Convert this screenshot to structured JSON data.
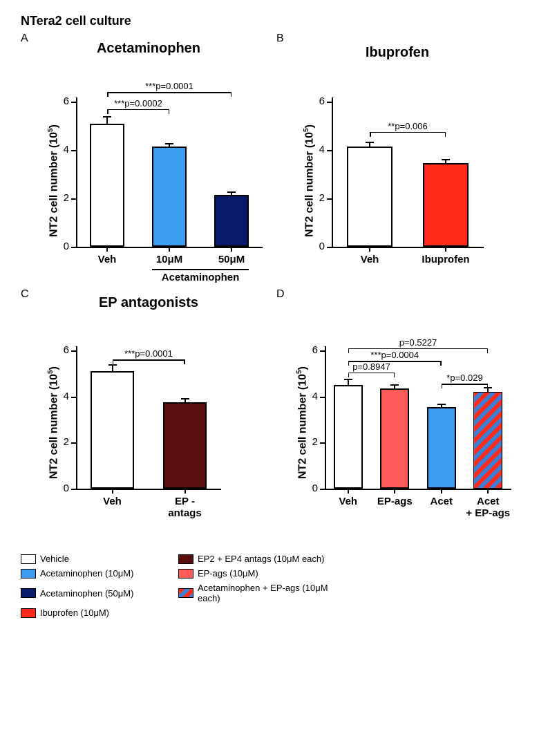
{
  "figure_title": "NTera2 cell culture",
  "ylabel_html": "NT2 cell number (10<sup>5</sup>)",
  "colors": {
    "vehicle": "#ffffff",
    "acet10": "#3b9cf0",
    "acet50": "#0a1a6a",
    "ibuprofen": "#ff2a1a",
    "ep_antags": "#5a0f0f",
    "ep_ags": "#ff5a5a",
    "acet_epags_base": "#3b7fd6",
    "acet_epags_stripe": "#ff2a1a",
    "axis": "#000000",
    "background": "#ffffff"
  },
  "typography": {
    "axis_fontsize": 15,
    "title_fontsize": 20,
    "label_fontsize": 16,
    "annot_fontsize": 13
  },
  "panels": {
    "A": {
      "letter": "A",
      "title": "Acetaminophen",
      "type": "bar",
      "ylim": [
        0,
        6
      ],
      "ytick_step": 2,
      "bar_width": 0.55,
      "bars": [
        {
          "label": "Veh",
          "value": 5.1,
          "err": 0.3,
          "fill": "vehicle"
        },
        {
          "label_html": "10<span class='mu'>μ</span>M",
          "value": 4.15,
          "err": 0.15,
          "fill": "acet10"
        },
        {
          "label_html": "50<span class='mu'>μ</span>M",
          "value": 2.15,
          "err": 0.15,
          "fill": "acet50"
        }
      ],
      "x_group": {
        "label": "Acetaminophen",
        "from": 1,
        "to": 2
      },
      "brackets": [
        {
          "from": 0,
          "to": 1,
          "text": "***p=0.0002",
          "y": 5.7
        },
        {
          "from": 0,
          "to": 2,
          "text": "***p=0.0001",
          "y": 6.4
        }
      ]
    },
    "B": {
      "letter": "B",
      "title": "Ibuprofen",
      "type": "bar",
      "ylim": [
        0,
        6
      ],
      "ytick_step": 2,
      "bar_width": 0.6,
      "bars": [
        {
          "label": "Veh",
          "value": 4.15,
          "err": 0.2,
          "fill": "vehicle"
        },
        {
          "label": "Ibuprofen",
          "value": 3.45,
          "err": 0.18,
          "fill": "ibuprofen"
        }
      ],
      "brackets": [
        {
          "from": 0,
          "to": 1,
          "text": "**p=0.006",
          "y": 4.75
        }
      ]
    },
    "C": {
      "letter": "C",
      "title": "EP antagonists",
      "type": "bar",
      "ylim": [
        0,
        6
      ],
      "ytick_step": 2,
      "bar_width": 0.6,
      "bars": [
        {
          "label": "Veh",
          "value": 5.1,
          "err": 0.3,
          "fill": "vehicle"
        },
        {
          "label_html": "EP -<br>antags",
          "value": 3.75,
          "err": 0.18,
          "fill": "ep_antags"
        }
      ],
      "brackets": [
        {
          "from": 0,
          "to": 1,
          "text": "***p=0.0001",
          "y": 5.6
        }
      ]
    },
    "D": {
      "letter": "D",
      "title": "",
      "type": "bar",
      "ylim": [
        0,
        6
      ],
      "ytick_step": 2,
      "bar_width": 0.62,
      "bars": [
        {
          "label": "Veh",
          "value": 4.5,
          "err": 0.28,
          "fill": "vehicle"
        },
        {
          "label": "EP-ags",
          "value": 4.35,
          "err": 0.18,
          "fill": "ep_ags"
        },
        {
          "label": "Acet",
          "value": 3.55,
          "err": 0.15,
          "fill": "acet10"
        },
        {
          "label_html": "Acet<br>+ EP-ags",
          "value": 4.2,
          "err": 0.2,
          "fill": "acet_epags"
        }
      ],
      "brackets": [
        {
          "from": 0,
          "to": 1,
          "text": "p=0.8947",
          "y": 5.05
        },
        {
          "from": 2,
          "to": 3,
          "text": "*p=0.029",
          "y": 4.55
        },
        {
          "from": 0,
          "to": 2,
          "text": "***p=0.0004",
          "y": 5.55
        },
        {
          "from": 0,
          "to": 3,
          "text": "p=0.5227",
          "y": 6.1
        }
      ]
    }
  },
  "legend": [
    {
      "fill": "vehicle",
      "label": "Vehicle"
    },
    {
      "fill": "ep_antags",
      "label_html": "EP2 + EP4 antags (10<span class='mu'>μ</span>M each)"
    },
    {
      "fill": "blank",
      "label": ""
    },
    {
      "fill": "acet10",
      "label_html": "Acetaminophen (10<span class='mu'>μ</span>M)"
    },
    {
      "fill": "ep_ags",
      "label_html": "EP-ags (10<span class='mu'>μ</span>M)"
    },
    {
      "fill": "blank",
      "label": ""
    },
    {
      "fill": "acet50",
      "label_html": "Acetaminophen (50<span class='mu'>μ</span>M)"
    },
    {
      "fill": "acet_epags",
      "label_html": "Acetaminophen + EP-ags (10<span class='mu'>μ</span>M each)"
    },
    {
      "fill": "blank",
      "label": ""
    },
    {
      "fill": "ibuprofen",
      "label_html": "Ibuprofen (10<span class='mu'>μ</span>M)"
    }
  ]
}
